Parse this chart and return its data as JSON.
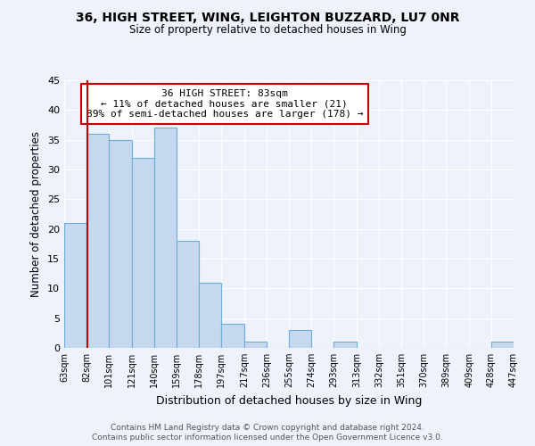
{
  "title1": "36, HIGH STREET, WING, LEIGHTON BUZZARD, LU7 0NR",
  "title2": "Size of property relative to detached houses in Wing",
  "xlabel": "Distribution of detached houses by size in Wing",
  "ylabel": "Number of detached properties",
  "bar_edges": [
    63,
    82,
    101,
    121,
    140,
    159,
    178,
    197,
    217,
    236,
    255,
    274,
    293,
    313,
    332,
    351,
    370,
    389,
    409,
    428,
    447
  ],
  "bar_heights": [
    21,
    36,
    35,
    32,
    37,
    18,
    11,
    4,
    1,
    0,
    3,
    0,
    1,
    0,
    0,
    0,
    0,
    0,
    0,
    1
  ],
  "bar_color": "#c5d8f0",
  "bar_edge_color": "#6baed6",
  "vline_x": 83,
  "vline_color": "#cc0000",
  "annotation_text": "36 HIGH STREET: 83sqm\n← 11% of detached houses are smaller (21)\n89% of semi-detached houses are larger (178) →",
  "annotation_box_color": "#ffffff",
  "annotation_box_edge_color": "#cc0000",
  "ylim": [
    0,
    45
  ],
  "yticks": [
    0,
    5,
    10,
    15,
    20,
    25,
    30,
    35,
    40,
    45
  ],
  "tick_labels": [
    "63sqm",
    "82sqm",
    "101sqm",
    "121sqm",
    "140sqm",
    "159sqm",
    "178sqm",
    "197sqm",
    "217sqm",
    "236sqm",
    "255sqm",
    "274sqm",
    "293sqm",
    "313sqm",
    "332sqm",
    "351sqm",
    "370sqm",
    "389sqm",
    "409sqm",
    "428sqm",
    "447sqm"
  ],
  "footer1": "Contains HM Land Registry data © Crown copyright and database right 2024.",
  "footer2": "Contains public sector information licensed under the Open Government Licence v3.0.",
  "bg_color": "#eef2fb",
  "grid_color": "#ffffff"
}
